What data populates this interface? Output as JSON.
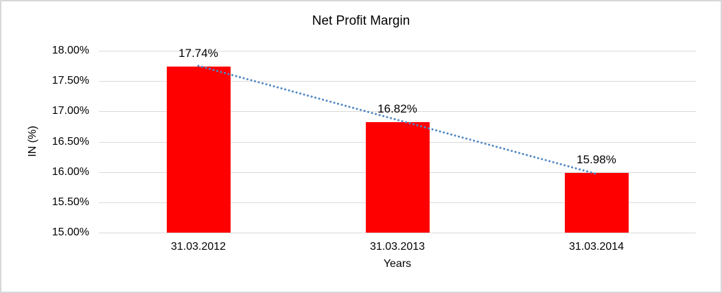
{
  "chart_data": {
    "type": "bar",
    "title": "Net Profit Margin",
    "xlabel": "Years",
    "ylabel": "IN (%)",
    "categories": [
      "31.03.2012",
      "31.03.2013",
      "31.03.2014"
    ],
    "series": [
      {
        "name": "Net Profit Margin",
        "values": [
          17.74,
          16.82,
          15.98
        ],
        "labels": [
          "17.74%",
          "16.82%",
          "15.98%"
        ]
      }
    ],
    "ylim": [
      15,
      18
    ],
    "ytick_step": 0.5,
    "ytick_labels": [
      "18.00%",
      "17.50%",
      "17.00%",
      "16.50%",
      "16.00%",
      "15.50%",
      "15.00%"
    ],
    "grid": true,
    "legend": "none",
    "bar_color": "#ff0000",
    "gridline_color": "#d9d9d9",
    "frame_border_color": "#d7d7d7",
    "trendline": {
      "type": "linear",
      "style": "dotted",
      "color": "#4f87c6"
    }
  }
}
